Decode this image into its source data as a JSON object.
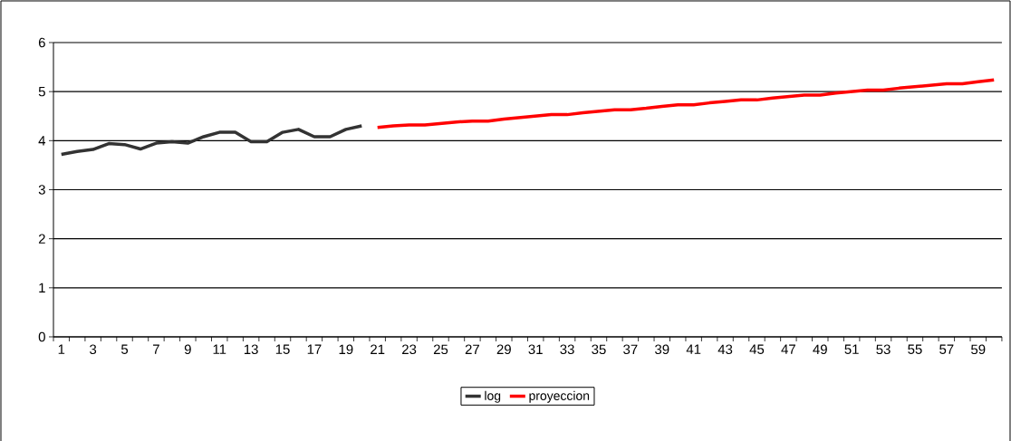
{
  "chart_data": {
    "type": "line",
    "categories": [
      "1",
      null,
      "3",
      null,
      "5",
      null,
      "7",
      null,
      "9",
      null,
      "11",
      null,
      "13",
      null,
      "15",
      null,
      "17",
      null,
      "19",
      null,
      "21",
      null,
      "23",
      null,
      "25",
      null,
      "27",
      null,
      "29",
      null,
      "31",
      null,
      "33",
      null,
      "35",
      null,
      "37",
      null,
      "39",
      null,
      "41",
      null,
      "43",
      null,
      "45",
      null,
      "47",
      null,
      "49",
      null,
      "51",
      null,
      "53",
      null,
      "55",
      null,
      "57",
      null,
      "59",
      null
    ],
    "series": [
      {
        "name": "log",
        "color": "#333333",
        "values": [
          3.72,
          3.78,
          3.82,
          3.94,
          3.92,
          3.83,
          3.95,
          3.98,
          3.95,
          4.08,
          4.17,
          4.17,
          3.98,
          3.98,
          4.17,
          4.23,
          4.08,
          4.08,
          4.23,
          4.3,
          null,
          null,
          null,
          null,
          null,
          null,
          null,
          null,
          null,
          null,
          null,
          null,
          null,
          null,
          null,
          null,
          null,
          null,
          null,
          null,
          null,
          null,
          null,
          null,
          null,
          null,
          null,
          null,
          null,
          null,
          null,
          null,
          null,
          null,
          null,
          null,
          null,
          null,
          null,
          null
        ]
      },
      {
        "name": "proyeccion",
        "color": "#ff0000",
        "values": [
          null,
          null,
          null,
          null,
          null,
          null,
          null,
          null,
          null,
          null,
          null,
          null,
          null,
          null,
          null,
          null,
          null,
          null,
          null,
          null,
          4.27,
          4.3,
          4.32,
          4.32,
          4.35,
          4.38,
          4.4,
          4.4,
          4.44,
          4.47,
          4.5,
          4.53,
          4.53,
          4.57,
          4.6,
          4.63,
          4.63,
          4.66,
          4.7,
          4.73,
          4.73,
          4.77,
          4.8,
          4.83,
          4.83,
          4.87,
          4.9,
          4.93,
          4.93,
          4.97,
          5.0,
          5.03,
          5.03,
          5.07,
          5.1,
          5.13,
          5.16,
          5.16,
          5.2,
          5.24
        ]
      }
    ],
    "ylim": [
      0,
      6
    ],
    "yticks": [
      0,
      1,
      2,
      3,
      4,
      5,
      6
    ],
    "grid": "y",
    "legend": "bottom",
    "marker": "none",
    "line_style": "solid"
  }
}
